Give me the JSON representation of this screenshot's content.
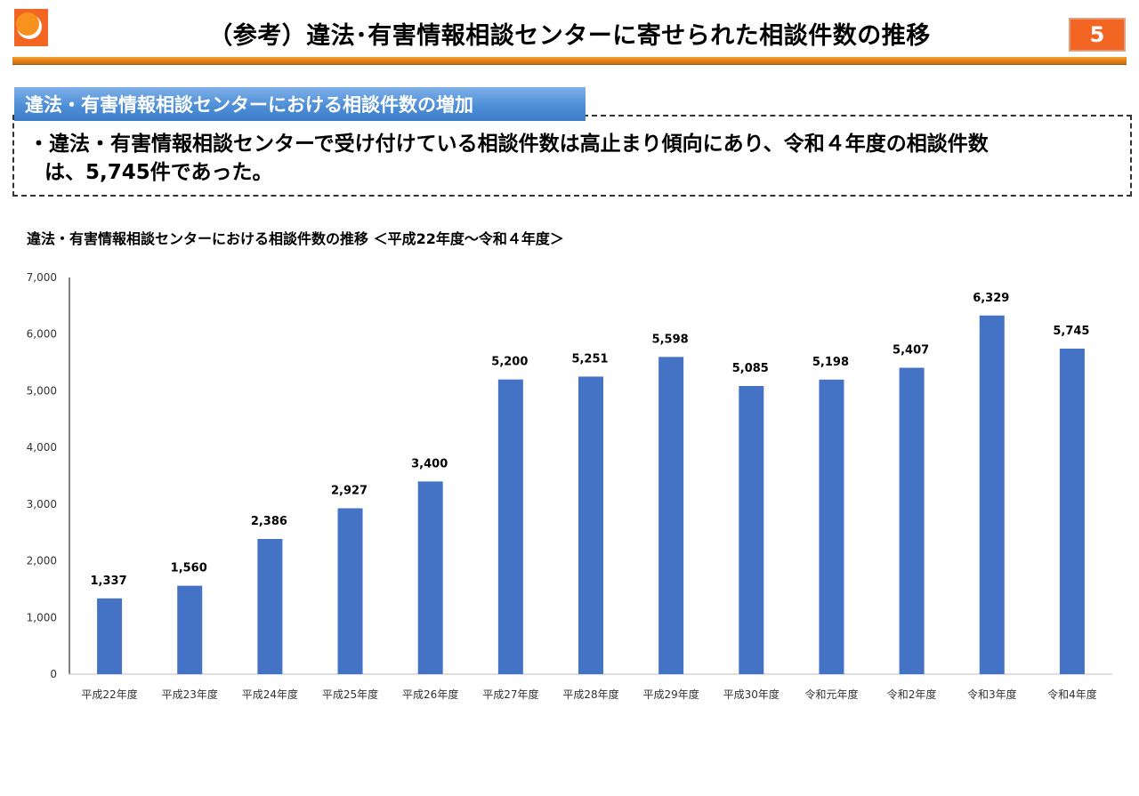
{
  "header": {
    "title": "（参考）違法･有害情報相談センターに寄せられた相談件数の推移",
    "page_number": "5",
    "logo_icon": "orange-circle-logo",
    "accent_color": "#f26522"
  },
  "summary": {
    "heading": "違法・有害情報相談センターにおける相談件数の増加",
    "line1": "・違法・有害情報相談センターで受け付けている相談件数は高止まり傾向にあり、令和４年度の相談件数",
    "line2": "は、5,745件であった。"
  },
  "chart_data": {
    "type": "bar",
    "title": "違法・有害情報相談センターにおける相談件数の推移 ＜平成22年度～令和４年度＞",
    "categories": [
      "平成22年度",
      "平成23年度",
      "平成24年度",
      "平成25年度",
      "平成26年度",
      "平成27年度",
      "平成28年度",
      "平成29年度",
      "平成30年度",
      "令和元年度",
      "令和2年度",
      "令和3年度",
      "令和4年度"
    ],
    "values": [
      1337,
      1560,
      2386,
      2927,
      3400,
      5200,
      5251,
      5598,
      5085,
      5198,
      5407,
      6329,
      5745
    ],
    "data_labels": [
      "1,337",
      "1,560",
      "2,386",
      "2,927",
      "3,400",
      "5,200",
      "5,251",
      "5,598",
      "5,085",
      "5,198",
      "5,407",
      "6,329",
      "5,745"
    ],
    "ylim": [
      0,
      7000
    ],
    "yticks": [
      0,
      1000,
      2000,
      3000,
      4000,
      5000,
      6000,
      7000
    ],
    "ytick_labels": [
      "0",
      "1,000",
      "2,000",
      "3,000",
      "4,000",
      "5,000",
      "6,000",
      "7,000"
    ],
    "grid": false,
    "bar_color": "#4472c4"
  }
}
